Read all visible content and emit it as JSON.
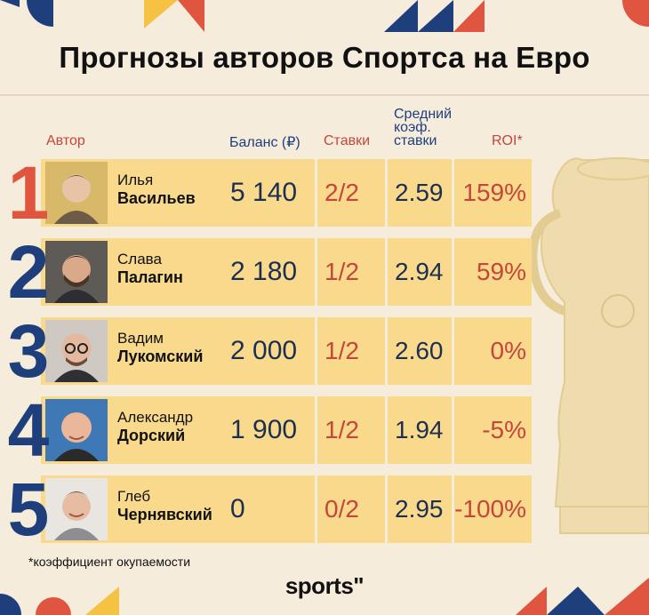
{
  "title": "Прогнозы авторов Спортса на Евро",
  "headers": {
    "author": "Автор",
    "balance": "Баланс (₽)",
    "bets": "Ставки",
    "avg_coef_line1": "Средний",
    "avg_coef_line2": "коэф.",
    "avg_coef_line3": "ставки",
    "roi": "ROI*"
  },
  "rows": [
    {
      "rank": "1",
      "first": "Илья",
      "last": "Васильев",
      "balance": "5 140",
      "bets": "2/2",
      "coef": "2.59",
      "roi": "159%",
      "rank_color": "#e0553f"
    },
    {
      "rank": "2",
      "first": "Слава",
      "last": "Палагин",
      "balance": "2 180",
      "bets": "1/2",
      "coef": "2.94",
      "roi": "59%",
      "rank_color": "#1f3f7c"
    },
    {
      "rank": "3",
      "first": "Вадим",
      "last": "Лукомский",
      "balance": "2 000",
      "bets": "1/2",
      "coef": "2.60",
      "roi": "0%",
      "rank_color": "#1f3f7c"
    },
    {
      "rank": "4",
      "first": "Александр",
      "last": "Дорский",
      "balance": "1 900",
      "bets": "1/2",
      "coef": "1.94",
      "roi": "-5%",
      "rank_color": "#1f3f7c"
    },
    {
      "rank": "5",
      "first": "Глеб",
      "last": "Чернявский",
      "balance": "0",
      "bets": "0/2",
      "coef": "2.95",
      "roi": "-100%",
      "rank_color": "#1f3f7c"
    }
  ],
  "footnote": "*коэффициент окупаемости",
  "logo": "sports\"",
  "colors": {
    "accent_red": "#c5463b",
    "navy": "#1c2e52",
    "cell_yellow": "#f9d98b",
    "background": "#f5ecdc"
  }
}
